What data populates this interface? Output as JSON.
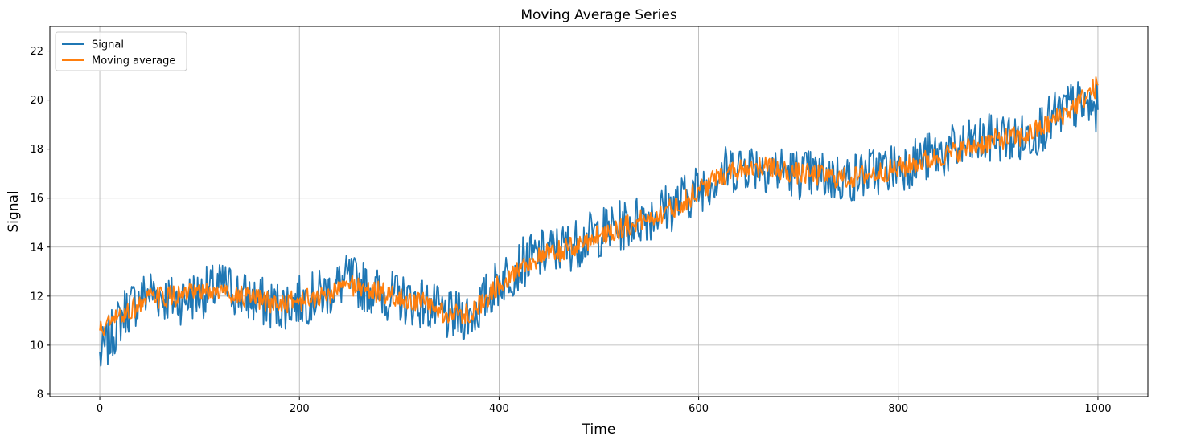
{
  "chart_data": {
    "type": "line",
    "title": "Moving Average Series",
    "xlabel": "Time",
    "ylabel": "Signal",
    "xlim": [
      -50,
      1050
    ],
    "ylim": [
      7.9,
      23.0
    ],
    "xticks": [
      0,
      200,
      400,
      600,
      800,
      1000
    ],
    "yticks": [
      8,
      10,
      12,
      14,
      16,
      18,
      20,
      22
    ],
    "grid": true,
    "legend": "top-left",
    "x": [
      0,
      25,
      50,
      75,
      100,
      125,
      150,
      175,
      200,
      225,
      250,
      275,
      300,
      325,
      350,
      375,
      400,
      425,
      450,
      475,
      500,
      525,
      550,
      575,
      600,
      625,
      650,
      675,
      700,
      725,
      750,
      775,
      800,
      825,
      850,
      875,
      900,
      925,
      950,
      975,
      1000
    ],
    "series": [
      {
        "name": "Signal",
        "color": "#1f77b4",
        "values": [
          9.5,
          11.4,
          12.2,
          11.8,
          12.1,
          12.4,
          11.9,
          11.6,
          11.8,
          12.1,
          12.7,
          12.2,
          11.9,
          11.7,
          11.1,
          11.3,
          12.6,
          13.4,
          13.8,
          14.1,
          14.6,
          14.9,
          15.3,
          15.7,
          16.4,
          17.1,
          17.4,
          17.2,
          17.0,
          16.9,
          16.8,
          17.1,
          17.3,
          17.6,
          17.9,
          18.2,
          18.5,
          18.4,
          19.1,
          19.8,
          19.6
        ]
      },
      {
        "name": "Moving average",
        "color": "#ff7f0e",
        "values": [
          10.6,
          11.3,
          11.9,
          12.0,
          12.1,
          12.2,
          11.9,
          11.7,
          11.8,
          12.0,
          12.5,
          12.2,
          11.9,
          11.7,
          11.2,
          11.4,
          12.5,
          13.3,
          13.7,
          14.0,
          14.5,
          14.8,
          15.2,
          15.6,
          16.3,
          17.0,
          17.3,
          17.2,
          17.0,
          16.9,
          16.8,
          17.0,
          17.2,
          17.5,
          17.8,
          18.1,
          18.4,
          18.5,
          19.0,
          19.7,
          20.6
        ]
      }
    ]
  }
}
